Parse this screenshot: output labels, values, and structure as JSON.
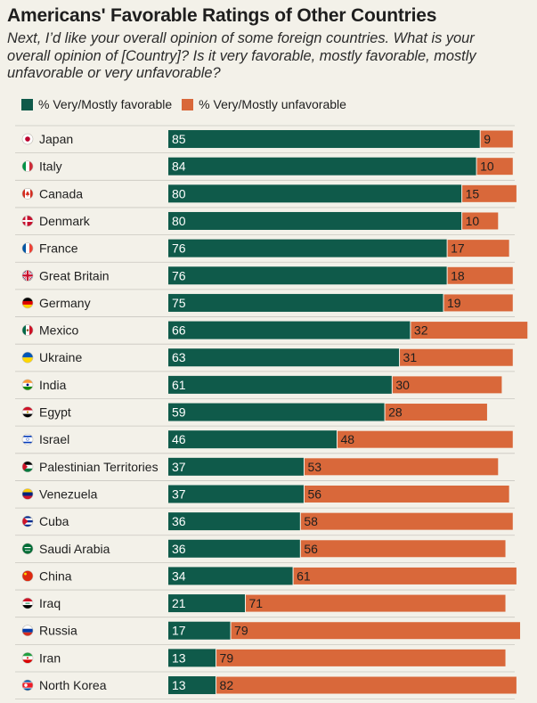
{
  "header": {
    "title": "Americans' Favorable Ratings of Other Countries",
    "subtitle": "Next, I’d like your overall opinion of some foreign countries. What is your overall opinion of [Country]? Is it very favorable, mostly favorable, mostly unfavorable or very unfavorable?"
  },
  "colors": {
    "favorable": "#0f5a4a",
    "unfavorable": "#d9683a",
    "grid": "#c9c7c0"
  },
  "chart_data": {
    "type": "bar",
    "orientation": "horizontal",
    "stacked": true,
    "legend_position": "top-left",
    "categories": [
      "Japan",
      "Italy",
      "Canada",
      "Denmark",
      "France",
      "Great Britain",
      "Germany",
      "Mexico",
      "Ukraine",
      "India",
      "Egypt",
      "Israel",
      "Palestinian Territories",
      "Venezuela",
      "Cuba",
      "Saudi Arabia",
      "China",
      "Iraq",
      "Russia",
      "Iran",
      "North Korea"
    ],
    "series": [
      {
        "name": "% Very/Mostly favorable",
        "values": [
          85,
          84,
          80,
          80,
          76,
          76,
          75,
          66,
          63,
          61,
          59,
          46,
          37,
          37,
          36,
          36,
          34,
          21,
          17,
          13,
          13
        ]
      },
      {
        "name": "% Very/Mostly unfavorable",
        "values": [
          9,
          10,
          15,
          10,
          17,
          18,
          19,
          32,
          31,
          30,
          28,
          48,
          53,
          56,
          58,
          56,
          61,
          71,
          79,
          79,
          82
        ]
      }
    ],
    "xlim": [
      0,
      100
    ]
  }
}
